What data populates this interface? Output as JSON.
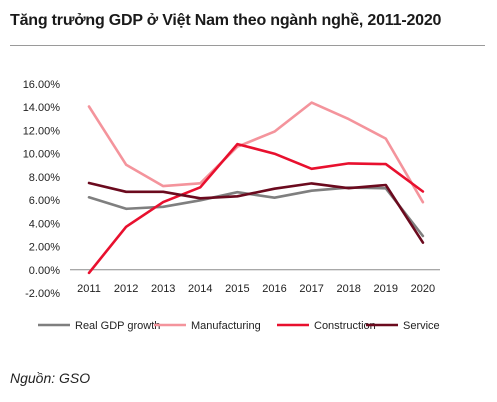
{
  "title": "Tăng trưởng GDP ở Việt Nam theo ngành nghề, 2011-2020",
  "source": "Nguồn: GSO",
  "chart_data": {
    "type": "line",
    "title": "Tăng trưởng GDP ở Việt Nam theo ngành nghề, 2011-2020",
    "x": [
      "2011",
      "2012",
      "2013",
      "2014",
      "2015",
      "2016",
      "2017",
      "2018",
      "2019",
      "2020"
    ],
    "ylim": [
      -0.02,
      0.16
    ],
    "yticks": [
      -0.02,
      0.0,
      0.02,
      0.04,
      0.06,
      0.08,
      0.1,
      0.12,
      0.14,
      0.16
    ],
    "ytick_labels": [
      "-2.00%",
      "0.00%",
      "2.00%",
      "4.00%",
      "6.00%",
      "8.00%",
      "10.00%",
      "12.00%",
      "14.00%",
      "16.00%"
    ],
    "grid": false,
    "legend": "bottom",
    "series": [
      {
        "name": "Real GDP growth",
        "color": "#7f7f7f",
        "values": [
          0.0624,
          0.0525,
          0.0542,
          0.0598,
          0.0668,
          0.0621,
          0.0681,
          0.0708,
          0.0702,
          0.0291
        ]
      },
      {
        "name": "Manufacturing",
        "color": "#f4949c",
        "values": [
          0.1406,
          0.0905,
          0.0721,
          0.0745,
          0.106,
          0.119,
          0.144,
          0.1298,
          0.113,
          0.0582
        ]
      },
      {
        "name": "Construction",
        "color": "#e8102e",
        "values": [
          -0.0027,
          0.037,
          0.0583,
          0.071,
          0.1082,
          0.1,
          0.087,
          0.0916,
          0.091,
          0.0674
        ]
      },
      {
        "name": "Service",
        "color": "#6b0a1e",
        "values": [
          0.0747,
          0.0672,
          0.0672,
          0.0616,
          0.0633,
          0.0698,
          0.0744,
          0.0703,
          0.073,
          0.0234
        ]
      }
    ]
  }
}
